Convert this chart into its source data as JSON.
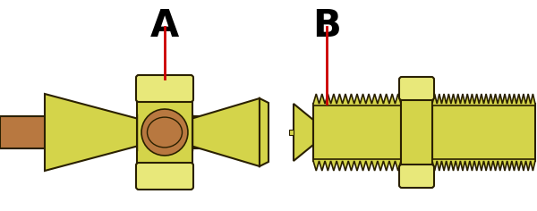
{
  "bg_color": "#ffffff",
  "brass_yellow": "#d4d44a",
  "brass_light": "#e8e87a",
  "brass_dark": "#8a8000",
  "brass_outline": "#2a2000",
  "copper_mid": "#b87840",
  "copper_light": "#c89060",
  "red": "#cc0000",
  "fig_width": 6.0,
  "fig_height": 2.36,
  "dpi": 100
}
